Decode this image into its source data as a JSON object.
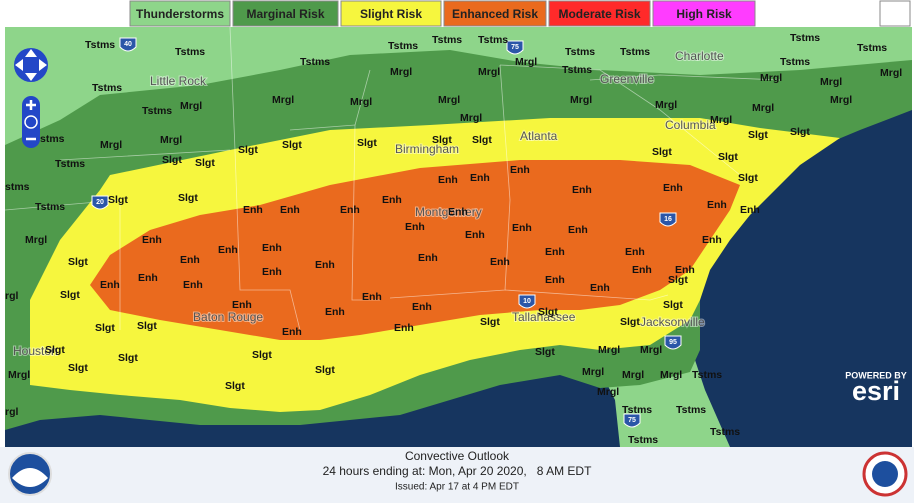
{
  "legend": [
    {
      "label": "Thunderstorms",
      "color": "#8ed58a"
    },
    {
      "label": "Marginal Risk",
      "color": "#4f9a4b"
    },
    {
      "label": "Slight Risk",
      "color": "#f6f63e"
    },
    {
      "label": "Enhanced Risk",
      "color": "#ea6a1e"
    },
    {
      "label": "Moderate Risk",
      "color": "#ff2a2a"
    },
    {
      "label": "High Risk",
      "color": "#ff3cff"
    }
  ],
  "risk_labels": [
    "Tstms",
    "Tstms",
    "Tstms",
    "Tstms",
    "Tstms",
    "Tstms",
    "Tstms",
    "Tstms",
    "Tstms",
    "Tstms",
    "Tstms",
    "Tstms",
    "Tstms",
    "Tstms",
    "Mrgl",
    "Mrgl",
    "Mrgl",
    "Mrgl",
    "Mrgl",
    "Mrgl",
    "Mrgl",
    "Mrgl",
    "Mrgl",
    "Mrgl",
    "Mrgl",
    "Mrgl",
    "Mrgl",
    "Mrgl",
    "Mrgl",
    "Mrgl",
    "Mrgl",
    "Mrgl",
    "Slgt",
    "Slgt",
    "Slgt",
    "Slgt",
    "Slgt",
    "Slgt",
    "Slgt",
    "Slgt",
    "Slgt",
    "Slgt",
    "Slgt",
    "Slgt",
    "Slgt",
    "Slgt",
    "Slgt",
    "Slgt",
    "Slgt",
    "Slgt",
    "Slgt",
    "Slgt",
    "Slgt",
    "Slgt",
    "Slgt",
    "Slgt",
    "Slgt",
    "Slgt",
    "Slgt",
    "Slgt",
    "Slgt",
    "Slgt",
    "Enh",
    "Enh",
    "Enh",
    "Enh",
    "Enh",
    "Enh",
    "Enh",
    "Enh",
    "Enh",
    "Enh",
    "Enh",
    "Enh",
    "Enh",
    "Enh",
    "Enh",
    "Enh",
    "Enh",
    "Enh",
    "Enh",
    "Enh",
    "Enh",
    "Enh",
    "Enh",
    "Enh",
    "Enh",
    "Enh",
    "Enh",
    "Enh",
    "Enh",
    "Enh",
    "Enh",
    "Enh",
    "Enh",
    "Enh",
    "Enh",
    "Enh",
    "Enh",
    "Enh",
    "Enh",
    "Enh",
    "Mrgl",
    "Mrgl",
    "Mrgl",
    "Mrgl",
    "Mrgl",
    "Mrgl",
    "Tstms",
    "Tstms",
    "Tstms",
    "Tstms",
    "Tstms",
    "stms",
    "Tstms",
    "Mrgl",
    "rgl",
    "Mrgl",
    "rgl",
    "Tstms",
    "stms"
  ],
  "cities": [
    "Little Rock",
    "Birmingham",
    "Montgomery",
    "Baton Rouge",
    "Houston",
    "Atlanta",
    "Columbia",
    "Charlotte",
    "Greenville",
    "Tallahassee",
    "Jacksonville"
  ],
  "highways": [
    "40",
    "75",
    "20",
    "10",
    "16",
    "95",
    "75"
  ],
  "branding": {
    "powered_by": "POWERED BY",
    "logo": "esri"
  },
  "footer": {
    "title": "Convective Outlook",
    "valid": "24 hours ending at: Mon, Apr 20 2020,   8 AM EDT",
    "issued": "Issued: Apr 17 at 4 PM EDT"
  }
}
